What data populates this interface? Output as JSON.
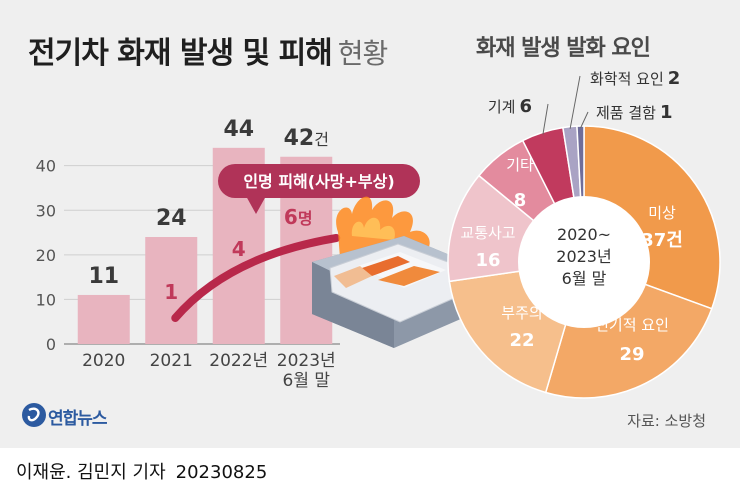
{
  "title": {
    "main": "전기차 화재 발생 및 피해",
    "sub": "현황"
  },
  "pie_title": "화재 발생 발화 요인",
  "source": "자료: 소방청",
  "logo": {
    "text": "연합뉴스"
  },
  "byline": {
    "author": "이재윤. 김민지 기자",
    "date": "20230825"
  },
  "colors": {
    "bar": "#e8b4bf",
    "line": "#b8284a",
    "callout": "#b03358",
    "background": "#efefef"
  },
  "chart_data": [
    {
      "type": "bar",
      "title": "전기차 화재 발생 및 피해 현황",
      "categories": [
        "2020",
        "2021",
        "2022년",
        "2023년 6월 말"
      ],
      "category_lines": [
        [
          "2020"
        ],
        [
          "2021"
        ],
        [
          "2022년"
        ],
        [
          "2023년",
          "6월 말"
        ]
      ],
      "values": [
        11,
        24,
        44,
        42
      ],
      "value_labels": [
        {
          "num": "11",
          "unit": ""
        },
        {
          "num": "24",
          "unit": ""
        },
        {
          "num": "44",
          "unit": ""
        },
        {
          "num": "42",
          "unit": "건"
        }
      ],
      "yticks": [
        0,
        10,
        20,
        30,
        40
      ],
      "ylim": [
        0,
        48
      ],
      "overlay_line": {
        "name": "인명 피해(사망+부상)",
        "x_indices": [
          1,
          2,
          3
        ],
        "values": [
          1,
          4,
          6
        ],
        "value_labels": [
          {
            "num": "1",
            "unit": ""
          },
          {
            "num": "4",
            "unit": ""
          },
          {
            "num": "6",
            "unit": "명"
          }
        ]
      }
    },
    {
      "type": "pie",
      "title": "화재 발생 발화 요인",
      "center_label": [
        "2020~",
        "2023년",
        "6월 말"
      ],
      "slices": [
        {
          "name": "미상",
          "value": 37,
          "label": "37건",
          "color": "#f19a4b"
        },
        {
          "name": "전기적 요인",
          "value": 29,
          "label": "29",
          "color": "#f3a866"
        },
        {
          "name": "부주의",
          "value": 22,
          "label": "22",
          "color": "#f6bf8c"
        },
        {
          "name": "교통사고",
          "value": 16,
          "label": "16",
          "color": "#efc4cb"
        },
        {
          "name": "기타",
          "value": 8,
          "label": "8",
          "color": "#e38b9e"
        },
        {
          "name": "기계",
          "value": 6,
          "label": "6",
          "color": "#c13a5e"
        },
        {
          "name": "화학적 요인",
          "value": 2,
          "label": "2",
          "color": "#a9a3c4"
        },
        {
          "name": "제품 결함",
          "value": 1,
          "label": "1",
          "color": "#6f6d9a"
        }
      ]
    }
  ]
}
